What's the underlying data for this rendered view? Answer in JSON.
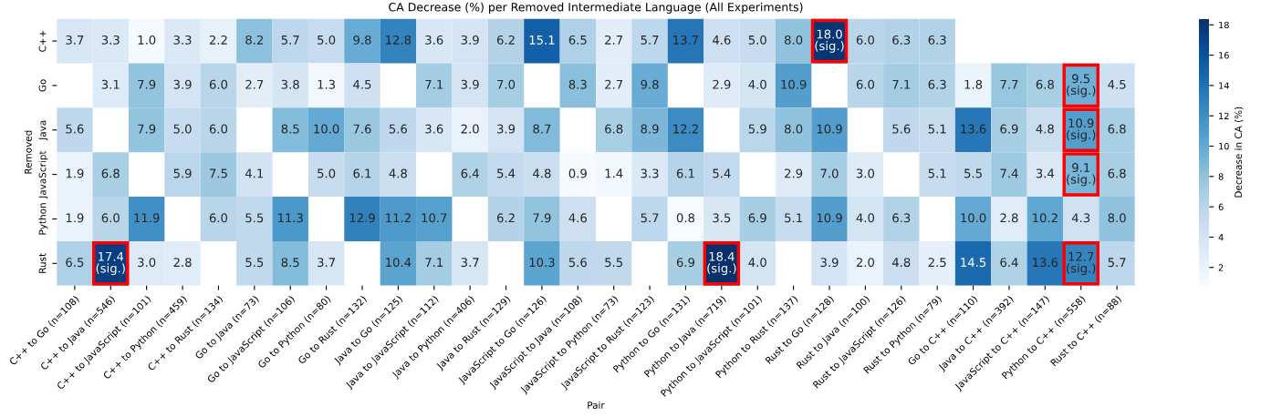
{
  "chart_data": {
    "type": "heatmap",
    "title": "CA Decrease (%) per Removed Intermediate Language (All Experiments)",
    "xlabel": "Pair",
    "ylabel": "Removed",
    "clabel": "Decrease in CA (%)",
    "categories": [
      "C++ to Go (n=108)",
      "C++ to Java (n=546)",
      "C++ to JavaScript (n=101)",
      "C++ to Python (n=459)",
      "C++ to Rust (n=134)",
      "Go to Java (n=73)",
      "Go to JavaScript (n=106)",
      "Go to Python (n=80)",
      "Go to Rust (n=132)",
      "Java to Go (n=125)",
      "Java to JavaScript (n=112)",
      "Java to Python (n=406)",
      "Java to Rust (n=129)",
      "JavaScript to Go (n=126)",
      "JavaScript to Java (n=108)",
      "JavaScript to Python (n=73)",
      "JavaScript to Rust (n=123)",
      "Python to Go (n=131)",
      "Python to Java (n=719)",
      "Python to JavaScript (n=101)",
      "Python to Rust (n=137)",
      "Rust to Go (n=128)",
      "Rust to Java (n=100)",
      "Rust to JavaScript (n=126)",
      "Rust to Python (n=79)",
      "Go to C++ (n=110)",
      "Java to C++ (n=392)",
      "JavaScript to C++ (n=147)",
      "Python to C++ (n=558)",
      "Rust to C++ (n=88)"
    ],
    "y_categories": [
      "C++",
      "Go",
      "Java",
      "JavaScript",
      "Python",
      "Rust"
    ],
    "cells": [
      [
        3.7,
        3.3,
        1.0,
        3.3,
        2.2,
        8.2,
        5.7,
        5.0,
        9.8,
        12.8,
        3.6,
        3.9,
        6.2,
        15.1,
        6.5,
        2.7,
        5.7,
        13.7,
        4.6,
        5.0,
        8.0,
        18.0,
        6.0,
        6.3,
        6.3,
        null,
        null,
        null,
        null,
        null
      ],
      [
        null,
        3.1,
        7.9,
        3.9,
        6.0,
        2.7,
        3.8,
        1.3,
        4.5,
        null,
        7.1,
        3.9,
        7.0,
        null,
        8.3,
        2.7,
        9.8,
        null,
        2.9,
        4.0,
        10.9,
        null,
        6.0,
        7.1,
        6.3,
        1.8,
        7.7,
        6.8,
        9.5,
        4.5
      ],
      [
        5.6,
        null,
        7.9,
        5.0,
        6.0,
        null,
        8.5,
        10.0,
        7.6,
        5.6,
        3.6,
        2.0,
        3.9,
        8.7,
        null,
        6.8,
        8.9,
        12.2,
        null,
        5.9,
        8.0,
        10.9,
        null,
        5.6,
        5.1,
        13.6,
        6.9,
        4.8,
        10.9,
        6.8
      ],
      [
        1.9,
        6.8,
        null,
        5.9,
        7.5,
        4.1,
        null,
        5.0,
        6.1,
        4.8,
        null,
        6.4,
        5.4,
        4.8,
        0.9,
        1.4,
        3.3,
        6.1,
        5.4,
        null,
        2.9,
        7.0,
        3.0,
        null,
        5.1,
        5.5,
        7.4,
        3.4,
        9.1,
        6.8
      ],
      [
        1.9,
        6.0,
        11.9,
        null,
        6.0,
        5.5,
        11.3,
        null,
        12.9,
        11.2,
        10.7,
        null,
        6.2,
        7.9,
        4.6,
        null,
        5.7,
        0.8,
        3.5,
        6.9,
        5.1,
        10.9,
        4.0,
        6.3,
        null,
        10.0,
        2.8,
        10.2,
        4.3,
        8.0
      ],
      [
        6.5,
        17.4,
        3.0,
        2.8,
        null,
        5.5,
        8.5,
        3.7,
        null,
        10.4,
        7.1,
        3.7,
        null,
        10.3,
        5.6,
        5.5,
        null,
        6.9,
        18.4,
        4.0,
        null,
        3.9,
        2.0,
        4.8,
        2.5,
        14.5,
        6.4,
        13.6,
        12.7,
        5.7
      ]
    ],
    "cell_labels": [
      [
        "3.7",
        "3.3",
        "1.0",
        "3.3",
        "2.2",
        "8.2",
        "5.7",
        "5.0",
        "9.8",
        "12.8",
        "3.6",
        "3.9",
        "6.2",
        "15.1",
        "6.5",
        "2.7",
        "5.7",
        "13.7",
        "4.6",
        "5.0",
        "8.0",
        "18.0\n(sig.)",
        "6.0",
        "6.3",
        "6.3",
        null,
        null,
        null,
        null,
        null
      ],
      [
        null,
        "3.1",
        "7.9",
        "3.9",
        "6.0",
        "2.7",
        "3.8",
        "1.3",
        "4.5",
        null,
        "7.1",
        "3.9",
        "7.0",
        null,
        "8.3",
        "2.7",
        "9.8",
        null,
        "2.9",
        "4.0",
        "10.9",
        null,
        "6.0",
        "7.1",
        "6.3",
        "1.8",
        "7.7",
        "6.8",
        "9.5\n(sig.)",
        "4.5"
      ],
      [
        "5.6",
        null,
        "7.9",
        "5.0",
        "6.0",
        null,
        "8.5",
        "10.0",
        "7.6",
        "5.6",
        "3.6",
        "2.0",
        "3.9",
        "8.7",
        null,
        "6.8",
        "8.9",
        "12.2",
        null,
        "5.9",
        "8.0",
        "10.9",
        null,
        "5.6",
        "5.1",
        "13.6",
        "6.9",
        "4.8",
        "10.9\n(sig.)",
        "6.8"
      ],
      [
        "1.9",
        "6.8",
        null,
        "5.9",
        "7.5",
        "4.1",
        null,
        "5.0",
        "6.1",
        "4.8",
        null,
        "6.4",
        "5.4",
        "4.8",
        "0.9",
        "1.4",
        "3.3",
        "6.1",
        "5.4",
        null,
        "2.9",
        "7.0",
        "3.0",
        null,
        "5.1",
        "5.5",
        "7.4",
        "3.4",
        "9.1\n(sig.)",
        "6.8"
      ],
      [
        "1.9",
        "6.0",
        "11.9",
        null,
        "6.0",
        "5.5",
        "11.3",
        null,
        "12.9",
        "11.2",
        "10.7",
        null,
        "6.2",
        "7.9",
        "4.6",
        null,
        "5.7",
        "0.8",
        "3.5",
        "6.9",
        "5.1",
        "10.9",
        "4.0",
        "6.3",
        null,
        "10.0",
        "2.8",
        "10.2",
        "4.3",
        "8.0"
      ],
      [
        "6.5",
        "17.4\n(sig.)",
        "3.0",
        "2.8",
        null,
        "5.5",
        "8.5",
        "3.7",
        null,
        "10.4",
        "7.1",
        "3.7",
        null,
        "10.3",
        "5.6",
        "5.5",
        null,
        "6.9",
        "18.4\n(sig.)",
        "4.0",
        null,
        "3.9",
        "2.0",
        "4.8",
        "2.5",
        "14.5",
        "6.4",
        "13.6",
        "12.7\n(sig.)",
        "5.7"
      ]
    ],
    "clim": [
      0.8,
      18.4
    ],
    "cticks": [
      2,
      4,
      6,
      8,
      10,
      12,
      14,
      16,
      18
    ],
    "data_labels": true
  }
}
